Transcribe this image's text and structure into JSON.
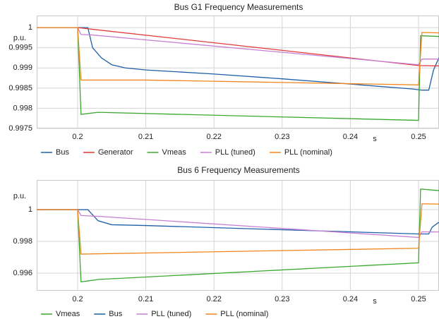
{
  "chart_data": [
    {
      "type": "line",
      "title": "Bus G1 Frequency Measurements",
      "y_label": "p.u.",
      "x_label": "s",
      "xlim": [
        0.194,
        0.253
      ],
      "xticks": [
        0.2,
        0.21,
        0.22,
        0.23,
        0.24,
        0.25
      ],
      "ylim": [
        0.9975,
        1.0003
      ],
      "yticks": [
        1,
        0.9995,
        0.999,
        0.9985,
        0.998,
        0.9975
      ],
      "grid": true,
      "series": [
        {
          "name": "Bus",
          "color": "#1f5fa8",
          "x": [
            0.194,
            0.2015,
            0.2022,
            0.2035,
            0.205,
            0.207,
            0.21,
            0.22,
            0.23,
            0.24,
            0.249,
            0.2505,
            0.2515,
            0.2522,
            0.2528,
            0.253
          ],
          "values": [
            1,
            1,
            0.9995,
            0.99925,
            0.99908,
            0.999,
            0.99895,
            0.99885,
            0.99873,
            0.9986,
            0.99848,
            0.99845,
            0.99845,
            0.99895,
            0.99918,
            0.99925
          ]
        },
        {
          "name": "Generator",
          "color": "#e03a3a",
          "x": [
            0.194,
            0.2,
            0.25,
            0.253
          ],
          "values": [
            1,
            1,
            0.99906,
            0.99905
          ]
        },
        {
          "name": "Vmeas",
          "color": "#3aa82e",
          "x": [
            0.194,
            0.2,
            0.2005,
            0.203,
            0.25,
            0.2503,
            0.253
          ],
          "values": [
            1,
            1,
            0.99785,
            0.9979,
            0.9977,
            0.9998,
            0.99978
          ]
        },
        {
          "name": "PLL (tuned)",
          "color": "#c77fd4",
          "x": [
            0.194,
            0.2,
            0.2005,
            0.202,
            0.25,
            0.2505,
            0.253
          ],
          "values": [
            1,
            1,
            0.99983,
            0.99982,
            0.99908,
            0.99922,
            0.99922
          ]
        },
        {
          "name": "PLL (nominal)",
          "color": "#f0861e",
          "x": [
            0.194,
            0.2,
            0.2005,
            0.21,
            0.25,
            0.2505,
            0.253
          ],
          "values": [
            1,
            1,
            0.9987,
            0.9987,
            0.99858,
            0.99988,
            0.99987
          ]
        }
      ]
    },
    {
      "type": "line",
      "title": "Bus 6 Frequency Measurements",
      "y_label": "p.u.",
      "x_label": "s",
      "xlim": [
        0.194,
        0.253
      ],
      "xticks": [
        0.2,
        0.21,
        0.22,
        0.23,
        0.24,
        0.25
      ],
      "ylim": [
        0.99489,
        1.00187
      ],
      "yticks": [
        0.996,
        0.998,
        1
      ],
      "grid": true,
      "series": [
        {
          "name": "Vmeas",
          "color": "#3aa82e",
          "x": [
            0.194,
            0.2,
            0.2005,
            0.203,
            0.25,
            0.2503,
            0.253
          ],
          "values": [
            1,
            1,
            0.99545,
            0.9956,
            0.99665,
            1.0013,
            1.0012
          ]
        },
        {
          "name": "Bus",
          "color": "#1f5fa8",
          "x": [
            0.194,
            0.2015,
            0.203,
            0.205,
            0.21,
            0.25,
            0.2515,
            0.252,
            0.2528,
            0.253
          ],
          "values": [
            1,
            1,
            0.9993,
            0.99905,
            0.999,
            0.99847,
            0.99847,
            0.9989,
            0.99915,
            0.9992
          ]
        },
        {
          "name": "PLL (tuned)",
          "color": "#c77fd4",
          "x": [
            0.194,
            0.2,
            0.2005,
            0.203,
            0.25,
            0.2505,
            0.253
          ],
          "values": [
            1,
            1,
            0.99963,
            0.99958,
            0.99825,
            0.9986,
            0.9986
          ]
        },
        {
          "name": "PLL (nominal)",
          "color": "#f0861e",
          "x": [
            0.194,
            0.2,
            0.2005,
            0.25,
            0.2505,
            0.253
          ],
          "values": [
            1,
            1,
            0.9972,
            0.99757,
            1.00037,
            1.00035
          ]
        }
      ]
    }
  ]
}
